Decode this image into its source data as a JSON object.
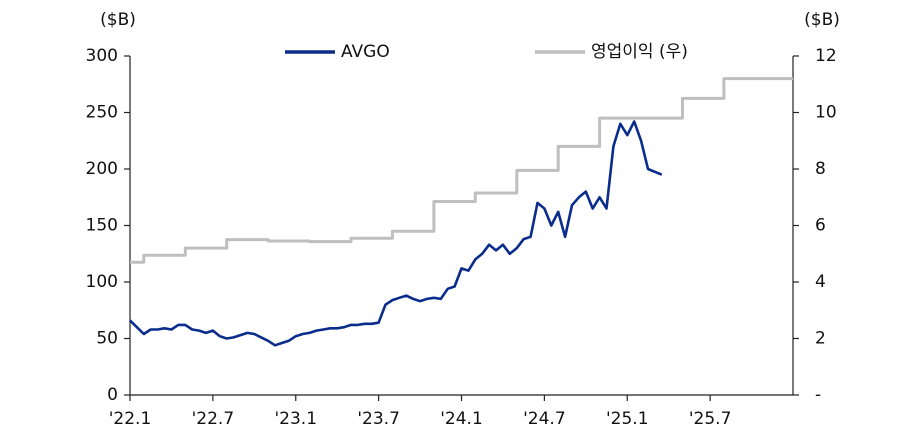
{
  "chart_data": {
    "type": "line",
    "y_label": "($B)",
    "y2_label": "($B)",
    "xlim": [
      0,
      48
    ],
    "xticks": [
      {
        "value": 0,
        "label": "'22.1"
      },
      {
        "value": 6,
        "label": "'22.7"
      },
      {
        "value": 12,
        "label": "'23.1"
      },
      {
        "value": 18,
        "label": "'23.7"
      },
      {
        "value": 24,
        "label": "'24.1"
      },
      {
        "value": 30,
        "label": "'24.7"
      },
      {
        "value": 36,
        "label": "'25.1"
      },
      {
        "value": 42,
        "label": "'25.7"
      }
    ],
    "ylim": [
      0,
      300
    ],
    "yticks": [
      0,
      50,
      100,
      150,
      200,
      250,
      300
    ],
    "y2lim": [
      0,
      12
    ],
    "y2ticks": [
      {
        "value": 0,
        "label": "-"
      },
      2,
      4,
      6,
      8,
      10,
      12
    ],
    "series": [
      {
        "name": "AVGO",
        "color": "#0a2d8c",
        "x": [
          0,
          0.5,
          1,
          1.5,
          2,
          2.5,
          3,
          3.5,
          4,
          4.5,
          5,
          5.5,
          6,
          6.5,
          7,
          7.5,
          8,
          8.5,
          9,
          9.5,
          10,
          10.5,
          11,
          11.5,
          12,
          12.5,
          13,
          13.5,
          14,
          14.5,
          15,
          15.5,
          16,
          16.5,
          17,
          17.5,
          18,
          18.5,
          19,
          19.5,
          20,
          20.5,
          21,
          21.5,
          22,
          22.5,
          23,
          23.5,
          24,
          24.5,
          25,
          25.5,
          26,
          26.5,
          27,
          27.5,
          28,
          28.5,
          29,
          29.5,
          30,
          30.5,
          31,
          31.5,
          32,
          32.5,
          33,
          33.5,
          34,
          34.5,
          35,
          35.5,
          36,
          36.5,
          37,
          37.5,
          38.5
        ],
        "values": [
          66,
          60,
          54,
          58,
          58,
          59,
          58,
          62,
          62,
          58,
          57,
          55,
          57,
          52,
          50,
          51,
          53,
          55,
          54,
          51,
          48,
          44,
          46,
          48,
          52,
          54,
          55,
          57,
          58,
          59,
          59,
          60,
          62,
          62,
          63,
          63,
          64,
          80,
          84,
          86,
          88,
          85,
          83,
          85,
          86,
          85,
          94,
          96,
          112,
          110,
          120,
          125,
          133,
          128,
          133,
          125,
          130,
          138,
          140,
          170,
          165,
          150,
          162,
          140,
          168,
          175,
          180,
          165,
          175,
          165,
          220,
          240,
          230,
          242,
          225,
          200,
          195
        ]
      },
      {
        "name": "영업이익 (우)",
        "color": "#bfbfbf",
        "axis": "y2",
        "x": [
          0,
          1,
          1,
          4,
          4,
          7,
          7,
          10,
          10,
          13,
          13,
          16,
          16,
          19,
          19,
          22,
          22,
          25,
          25,
          28,
          28,
          31,
          31,
          34,
          34,
          40,
          40,
          43,
          43,
          48
        ],
        "values": [
          4.7,
          4.7,
          4.95,
          4.95,
          5.2,
          5.2,
          5.5,
          5.5,
          5.45,
          5.45,
          5.43,
          5.43,
          5.55,
          5.55,
          5.8,
          5.8,
          6.85,
          6.85,
          7.15,
          7.15,
          7.95,
          7.95,
          8.8,
          8.8,
          9.8,
          9.8,
          10.5,
          10.5,
          11.2,
          11.2
        ]
      }
    ]
  }
}
